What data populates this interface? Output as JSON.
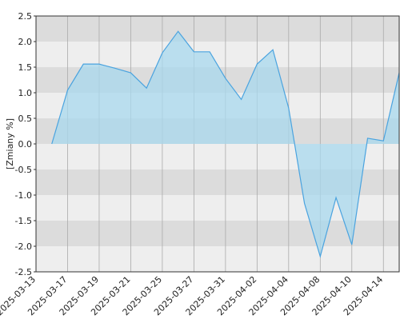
{
  "chart_data": {
    "type": "area",
    "ylabel": "[Zmiany %]",
    "categories": [
      "2025-03-13",
      null,
      "2025-03-17",
      null,
      "2025-03-19",
      null,
      "2025-03-21",
      null,
      "2025-03-25",
      null,
      "2025-03-27",
      null,
      "2025-03-31",
      null,
      "2025-04-02",
      null,
      "2025-04-04",
      null,
      "2025-04-08",
      null,
      "2025-04-10",
      null,
      "2025-04-14",
      null
    ],
    "values": [
      null,
      0.0,
      1.05,
      1.56,
      1.56,
      1.48,
      1.39,
      1.09,
      1.78,
      2.2,
      1.8,
      1.8,
      1.28,
      0.87,
      1.56,
      1.84,
      0.7,
      -1.16,
      -2.2,
      -1.05,
      -1.97,
      0.11,
      0.06,
      1.39
    ],
    "color": "#4aa3df",
    "fill": "#a8d8ee",
    "ylim": [
      -2.5,
      2.5
    ],
    "yticks": [
      {
        "value": 2.5,
        "label": "2.5"
      },
      {
        "value": 2,
        "label": "2.0"
      },
      {
        "value": 1.5,
        "label": "1.5"
      },
      {
        "value": 1,
        "label": "1.0"
      },
      {
        "value": 0.5,
        "label": "0.5"
      },
      {
        "value": 0,
        "label": "0.0"
      },
      {
        "value": -0.5,
        "label": "-0.5"
      },
      {
        "value": -1,
        "label": "-1.0"
      },
      {
        "value": -1.5,
        "label": "-1.5"
      },
      {
        "value": -2,
        "label": "-2.0"
      },
      {
        "value": -2.5,
        "label": "-2.5"
      }
    ],
    "grid": true
  }
}
